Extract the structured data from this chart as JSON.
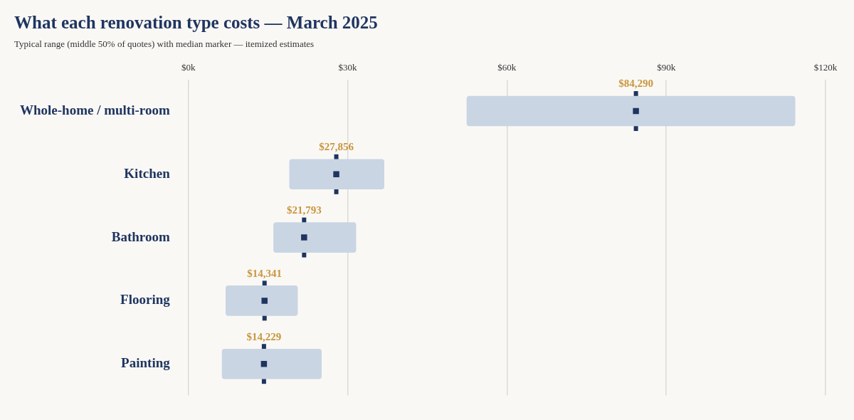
{
  "chart_data": {
    "type": "bar",
    "orientation": "horizontal",
    "title": "What each renovation type costs — March 2025",
    "subtitle": "Typical range (middle 50% of quotes) with median marker — itemized estimates",
    "categories": [
      "Whole-home / multi-room",
      "Kitchen",
      "Bathroom",
      "Flooring",
      "Painting"
    ],
    "series": [
      {
        "type": "bar",
        "color": "#c9d5e3",
        "base": [
          52400,
          19000,
          16000,
          7000,
          6300
        ],
        "values": [
          61900,
          17900,
          15600,
          13600,
          18800
        ]
      },
      {
        "type": "scatter",
        "color": "#1f3560",
        "x": [
          "Whole-home / multi-room",
          "Kitchen",
          "Bathroom",
          "Flooring",
          "Painting"
        ],
        "values": [
          84290,
          27856,
          21793,
          14341,
          14229
        ],
        "value_labels": [
          "$84,290",
          "$27,856",
          "$21,793",
          "$14,341",
          "$14,229"
        ]
      }
    ],
    "xlim": [
      0,
      120000
    ],
    "xticks": [
      {
        "value": 0,
        "label": "$0k"
      },
      {
        "value": 30000,
        "label": "$30k"
      },
      {
        "value": 60000,
        "label": "$60k"
      },
      {
        "value": 90000,
        "label": "$90k"
      },
      {
        "value": 120000,
        "label": "$120k"
      }
    ],
    "grid": "x",
    "legend": false
  }
}
